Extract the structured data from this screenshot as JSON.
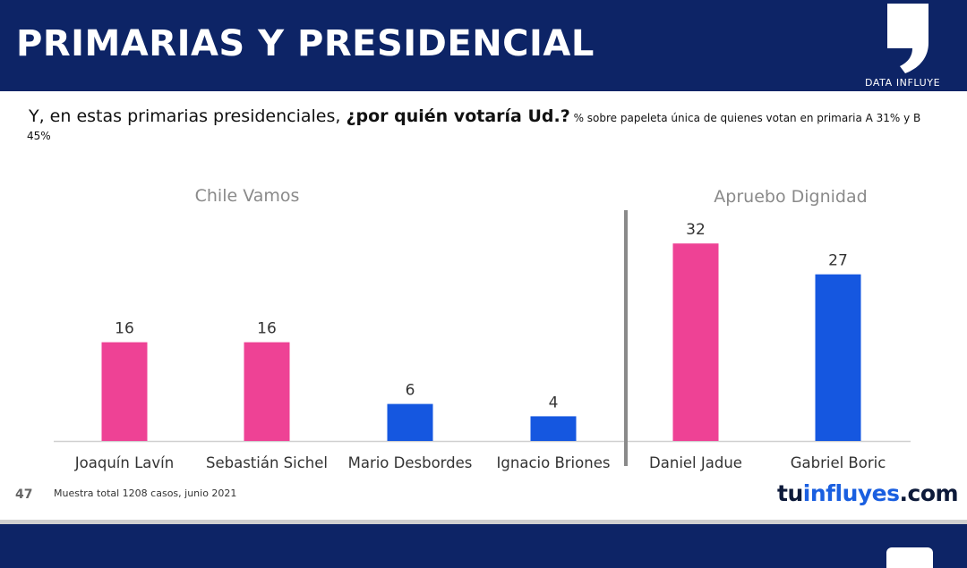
{
  "header": {
    "title": "PRIMARIAS Y PRESIDENCIAL",
    "brand_label": "DATA INFLUYE",
    "brand_icon": "quote-mark-icon"
  },
  "question": {
    "text_regular": "Y, en estas primarias presidenciales, ",
    "text_bold": "¿por quién votaría Ud.?",
    "note": " % sobre papeleta única de quienes votan en primaria A 31% y B",
    "note_tail": "45%"
  },
  "chart_data": {
    "type": "bar",
    "title": "",
    "xlabel": "",
    "ylabel": "",
    "ylim": [
      0,
      40
    ],
    "grid": false,
    "groups": [
      {
        "label": "Chile Vamos",
        "candidates": [
          "Joaquín Lavín",
          "Sebastián Sichel",
          "Mario Desbordes",
          "Ignacio Briones"
        ]
      },
      {
        "label": "Apruebo Dignidad",
        "candidates": [
          "Daniel Jadue",
          "Gabriel Boric"
        ]
      }
    ],
    "categories": [
      "Joaquín Lavín",
      "Sebastián Sichel",
      "Mario Desbordes",
      "Ignacio Briones",
      "Daniel Jadue",
      "Gabriel Boric"
    ],
    "values": [
      16,
      16,
      6,
      4,
      32,
      27
    ],
    "bar_colors": [
      "#ee4295",
      "#ee4295",
      "#1557e0",
      "#1557e0",
      "#ee4295",
      "#1557e0"
    ],
    "data_labels": [
      "16",
      "16",
      "6",
      "4",
      "32",
      "27"
    ]
  },
  "footer": {
    "page_number": "47",
    "note": "Muestra total 1208 casos,  junio 2021",
    "site_part1": "tu",
    "site_part2": "influyes",
    "site_part3": ".com"
  },
  "colors": {
    "header_bg": "#0d2466",
    "pink": "#ee4295",
    "blue": "#1557e0"
  }
}
